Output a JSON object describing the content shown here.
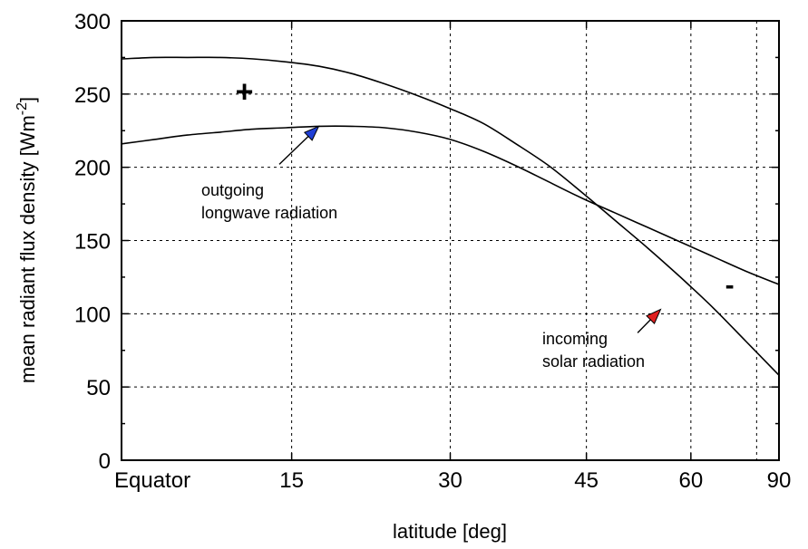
{
  "chart_data": {
    "type": "line",
    "xlabel": "latitude [deg]",
    "ylabel": "mean radiant flux density [Wm",
    "ylabel_exp": "-2",
    "ylabel_close": "]",
    "xlim": [
      0,
      1
    ],
    "ylim": [
      0,
      300
    ],
    "y_ticks": [
      0,
      50,
      100,
      150,
      200,
      250,
      300
    ],
    "x_ticks": [
      {
        "label": "Equator",
        "sin": 0.0
      },
      {
        "label": "15",
        "sin": 0.2588
      },
      {
        "label": "30",
        "sin": 0.5
      },
      {
        "label": "45",
        "sin": 0.7071
      },
      {
        "label": "60",
        "sin": 0.866
      },
      {
        "label": "90",
        "sin": 1.0
      }
    ],
    "extra_gridlines_x": [
      0.966
    ],
    "grid": true,
    "series": [
      {
        "name": "incoming solar radiation",
        "x": [
          0.0,
          0.05,
          0.1,
          0.15,
          0.2,
          0.25,
          0.3,
          0.35,
          0.4,
          0.45,
          0.5,
          0.55,
          0.6,
          0.65,
          0.7,
          0.75,
          0.8,
          0.85,
          0.9,
          0.95,
          1.0
        ],
        "y": [
          274,
          275,
          275,
          275,
          274,
          272,
          269,
          264,
          257,
          249,
          240,
          230,
          216,
          201,
          183,
          164,
          145,
          125,
          104,
          81,
          58
        ]
      },
      {
        "name": "outgoing longwave radiation",
        "x": [
          0.0,
          0.05,
          0.1,
          0.15,
          0.2,
          0.25,
          0.3,
          0.35,
          0.4,
          0.45,
          0.5,
          0.55,
          0.6,
          0.65,
          0.7,
          0.75,
          0.8,
          0.85,
          0.9,
          0.95,
          1.0
        ],
        "y": [
          216,
          219,
          222,
          224,
          226,
          227,
          228,
          228,
          227,
          224,
          219,
          211,
          201,
          190,
          179,
          169,
          159,
          149,
          139,
          129,
          120
        ]
      }
    ],
    "annotations": [
      {
        "text_lines": [
          "outgoing",
          "longwave radiation"
        ],
        "arrow_color": "#1f3fd6",
        "arrow_to": {
          "x": 0.3,
          "y": 228
        },
        "arrow_from": {
          "x": 0.24,
          "y": 202
        }
      },
      {
        "text_lines": [
          "incoming",
          "solar radiation"
        ],
        "arrow_color": "#e02020",
        "arrow_to": {
          "x": 0.82,
          "y": 103
        },
        "arrow_from": {
          "x": 0.785,
          "y": 87
        }
      },
      {
        "text": "+",
        "label": "surplus",
        "x": 0.187,
        "y": 252
      },
      {
        "text": "-",
        "label": "deficit",
        "x": 0.925,
        "y": 120
      }
    ]
  }
}
